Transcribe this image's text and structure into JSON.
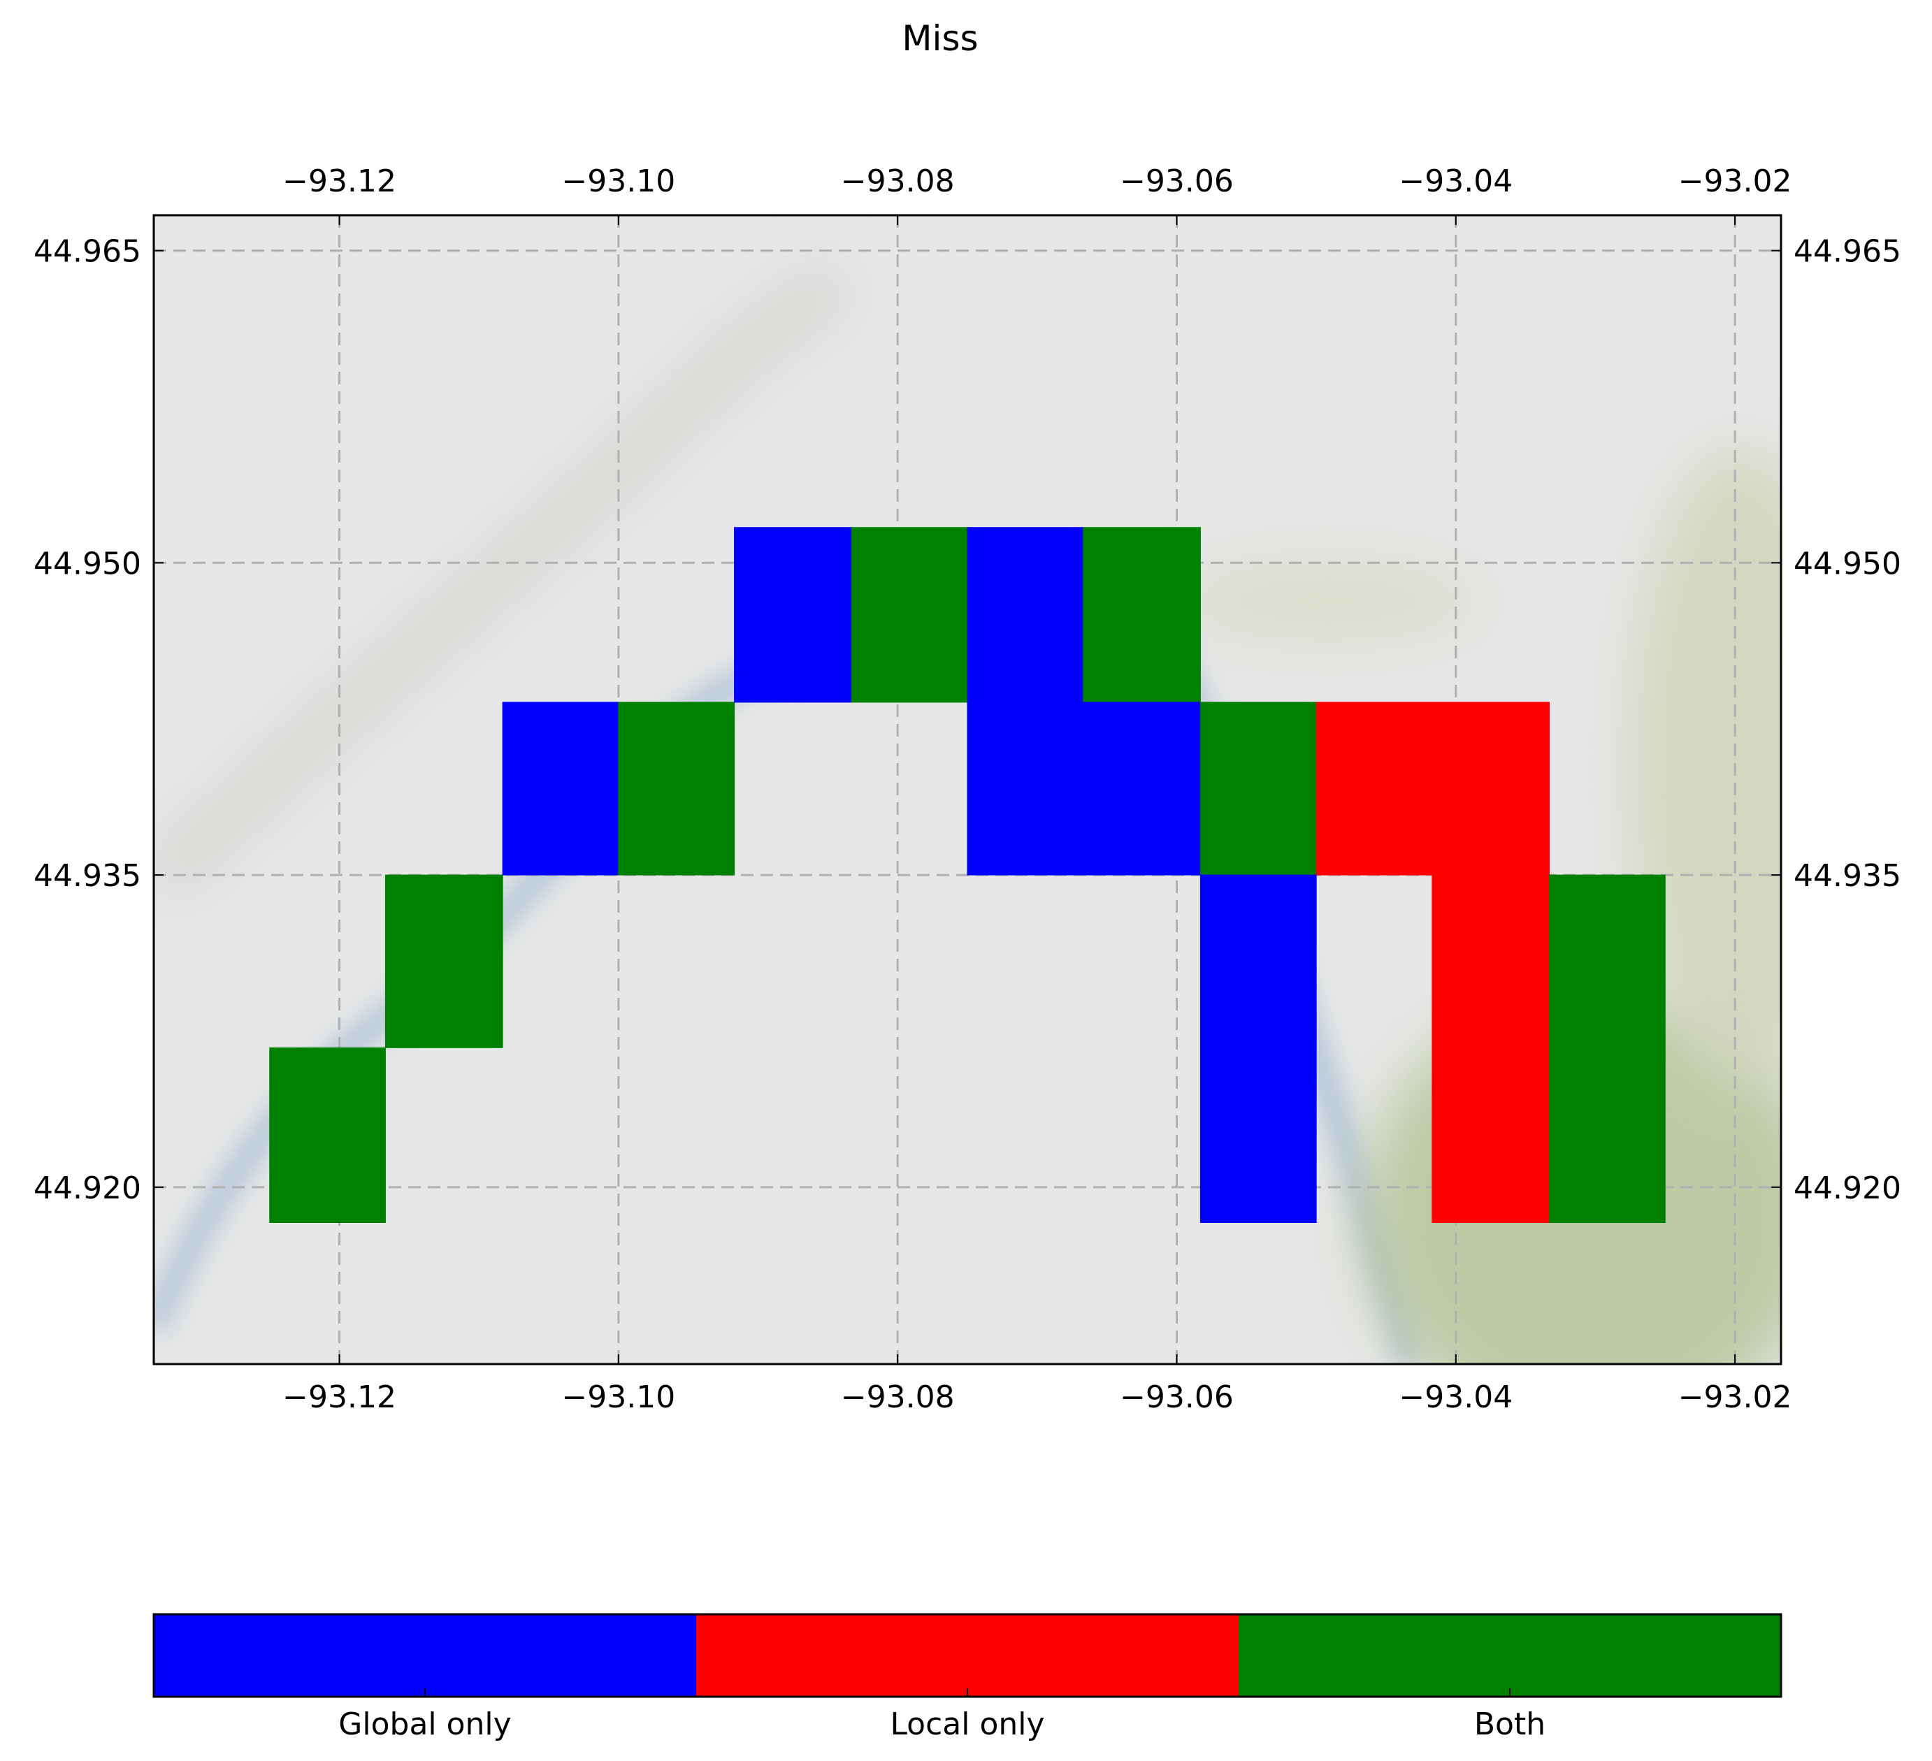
{
  "chart_data": {
    "type": "heatmap",
    "title": "Miss",
    "x_ticks": [
      "−93.12",
      "−93.10",
      "−93.08",
      "−93.06",
      "−93.04",
      "−93.02"
    ],
    "x_tick_values": [
      -93.12,
      -93.1,
      -93.08,
      -93.06,
      -93.04,
      -93.02
    ],
    "y_ticks": [
      "44.965",
      "44.950",
      "44.935",
      "44.920"
    ],
    "y_tick_values": [
      44.965,
      44.95,
      44.935,
      44.92
    ],
    "xlim": [
      -93.1333,
      -93.0167
    ],
    "ylim": [
      44.9115,
      44.9667
    ],
    "grid": true,
    "background": "map",
    "categories": [
      "Global only",
      "Local only",
      "Both"
    ],
    "colors": {
      "Global only": "#0000ff",
      "Local only": "#ff0000",
      "Both": "#008000"
    },
    "cells": [
      {
        "x0": -93.125,
        "x1": -93.1167,
        "y0": 44.9183,
        "y1": 44.9267,
        "category": "Both"
      },
      {
        "x0": -93.1167,
        "x1": -93.1083,
        "y0": 44.9267,
        "y1": 44.935,
        "category": "Both"
      },
      {
        "x0": -93.1083,
        "x1": -93.1,
        "y0": 44.935,
        "y1": 44.9433,
        "category": "Global only"
      },
      {
        "x0": -93.1,
        "x1": -93.0917,
        "y0": 44.935,
        "y1": 44.9433,
        "category": "Both"
      },
      {
        "x0": -93.0917,
        "x1": -93.0833,
        "y0": 44.9433,
        "y1": 44.9517,
        "category": "Global only"
      },
      {
        "x0": -93.0833,
        "x1": -93.075,
        "y0": 44.9433,
        "y1": 44.9517,
        "category": "Both"
      },
      {
        "x0": -93.075,
        "x1": -93.0667,
        "y0": 44.9433,
        "y1": 44.9517,
        "category": "Global only"
      },
      {
        "x0": -93.0667,
        "x1": -93.0583,
        "y0": 44.9433,
        "y1": 44.9517,
        "category": "Both"
      },
      {
        "x0": -93.075,
        "x1": -93.0583,
        "y0": 44.935,
        "y1": 44.9433,
        "category": "Global only"
      },
      {
        "x0": -93.0583,
        "x1": -93.05,
        "y0": 44.935,
        "y1": 44.9433,
        "category": "Both"
      },
      {
        "x0": -93.05,
        "x1": -93.0333,
        "y0": 44.935,
        "y1": 44.9433,
        "category": "Local only"
      },
      {
        "x0": -93.0583,
        "x1": -93.05,
        "y0": 44.9183,
        "y1": 44.935,
        "category": "Global only"
      },
      {
        "x0": -93.0417,
        "x1": -93.0333,
        "y0": 44.9183,
        "y1": 44.935,
        "category": "Local only"
      },
      {
        "x0": -93.0333,
        "x1": -93.025,
        "y0": 44.9183,
        "y1": 44.935,
        "category": "Both"
      }
    ]
  }
}
